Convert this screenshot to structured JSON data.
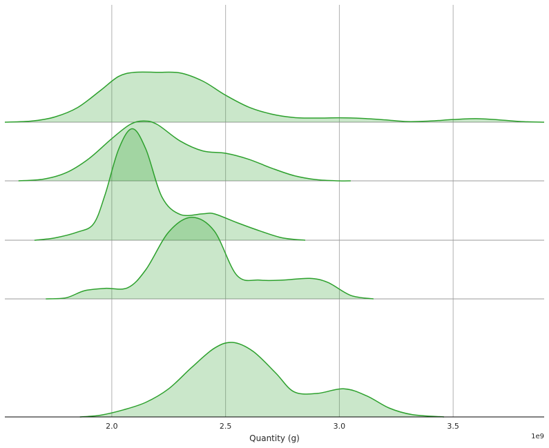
{
  "chart_data": {
    "type": "area",
    "subtype": "ridgeline-kde",
    "title": "",
    "xlabel": "Quantity (g)",
    "ylabel": "",
    "x_offset_label": "1e9",
    "xlim": [
      1.53,
      3.9
    ],
    "x_ticks": [
      2.0,
      2.5,
      3.0,
      3.5
    ],
    "x_tick_labels": [
      "2.0",
      "2.5",
      "3.0",
      "3.5"
    ],
    "grid": true,
    "legend": "none",
    "colors": {
      "line": "#2ca02c",
      "fill": "#2ca02c",
      "fill_opacity": 0.25,
      "baseline": "#999999",
      "grid": "#b0b0b0",
      "axis": "#000000"
    },
    "series": [
      {
        "x": [
          1.53,
          1.65,
          1.75,
          1.85,
          1.95,
          2.03,
          2.1,
          2.2,
          2.3,
          2.4,
          2.5,
          2.6,
          2.7,
          2.8,
          2.9,
          3.0,
          3.1,
          3.2,
          3.3,
          3.4,
          3.5,
          3.6,
          3.7,
          3.8,
          3.9
        ],
        "y": [
          0.0,
          0.02,
          0.09,
          0.25,
          0.54,
          0.78,
          0.85,
          0.85,
          0.84,
          0.7,
          0.46,
          0.26,
          0.14,
          0.08,
          0.07,
          0.075,
          0.065,
          0.04,
          0.01,
          0.02,
          0.045,
          0.06,
          0.04,
          0.01,
          0.0
        ]
      },
      {
        "x": [
          1.59,
          1.7,
          1.8,
          1.9,
          2.0,
          2.08,
          2.14,
          2.2,
          2.3,
          2.4,
          2.5,
          2.6,
          2.7,
          2.8,
          2.9,
          3.0,
          3.05
        ],
        "y": [
          0.0,
          0.03,
          0.14,
          0.38,
          0.72,
          0.96,
          1.02,
          0.96,
          0.68,
          0.51,
          0.47,
          0.37,
          0.22,
          0.09,
          0.02,
          0.0,
          0.0
        ]
      },
      {
        "x": [
          1.66,
          1.75,
          1.85,
          1.92,
          1.97,
          2.03,
          2.09,
          2.15,
          2.22,
          2.3,
          2.4,
          2.45,
          2.55,
          2.65,
          2.75,
          2.85
        ],
        "y": [
          0.0,
          0.04,
          0.14,
          0.28,
          0.77,
          1.55,
          1.9,
          1.55,
          0.74,
          0.44,
          0.45,
          0.45,
          0.3,
          0.16,
          0.04,
          0.0
        ]
      },
      {
        "x": [
          1.71,
          1.8,
          1.88,
          1.97,
          2.07,
          2.15,
          2.25,
          2.35,
          2.45,
          2.55,
          2.65,
          2.75,
          2.87,
          2.95,
          3.05,
          3.15
        ],
        "y": [
          0.0,
          0.02,
          0.14,
          0.18,
          0.19,
          0.5,
          1.14,
          1.39,
          1.16,
          0.4,
          0.32,
          0.32,
          0.35,
          0.28,
          0.06,
          0.0
        ]
      },
      {
        "x": [
          1.86,
          1.95,
          2.05,
          2.15,
          2.25,
          2.35,
          2.45,
          2.53,
          2.62,
          2.72,
          2.8,
          2.9,
          3.02,
          3.12,
          3.22,
          3.32,
          3.46
        ],
        "y": [
          0.0,
          0.03,
          0.12,
          0.25,
          0.48,
          0.84,
          1.17,
          1.27,
          1.12,
          0.75,
          0.43,
          0.4,
          0.48,
          0.36,
          0.15,
          0.04,
          0.0
        ]
      }
    ]
  }
}
